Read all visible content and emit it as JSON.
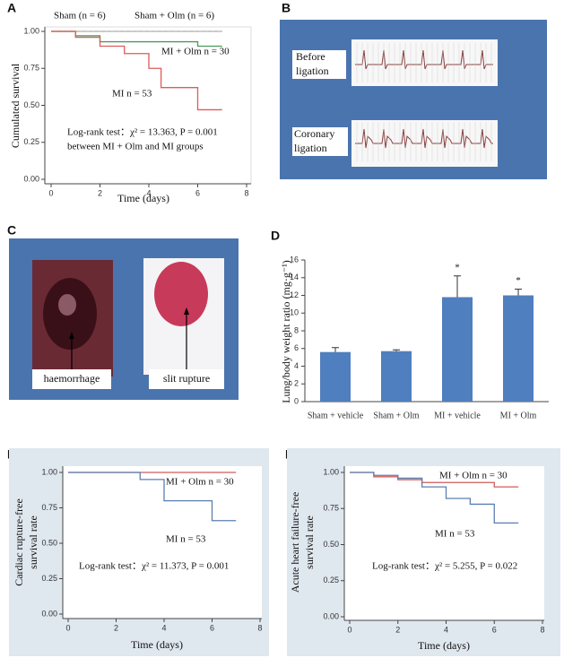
{
  "chart_data": [
    {
      "type": "line",
      "step": true,
      "panel": "A",
      "xlabel": "Time (days)",
      "ylabel": "Cumulated survival",
      "xlim": [
        0,
        8
      ],
      "ylim": [
        0,
        1
      ],
      "xticks": [
        0,
        2,
        4,
        6,
        8
      ],
      "yticks": [
        {
          "value": 0,
          "label": "0.00"
        },
        {
          "value": 0.25,
          "label": "0.25"
        },
        {
          "value": 0.5,
          "label": "0.50"
        },
        {
          "value": 0.75,
          "label": "0.75"
        },
        {
          "value": 1,
          "label": "1.00"
        }
      ],
      "series": [
        {
          "name": "Sham (n = 6)",
          "color": "#c8c050",
          "dashed": true,
          "x": [
            0,
            7
          ],
          "values": [
            1,
            1
          ]
        },
        {
          "name": "Sham + Olm (n = 6)",
          "color": "#b5b5b5",
          "x": [
            0,
            7
          ],
          "values": [
            1,
            1
          ]
        },
        {
          "name": "MI + Olm n = 30",
          "color": "#4a9a5a",
          "x": [
            0,
            1,
            2,
            6,
            7
          ],
          "values": [
            1,
            0.97,
            0.93,
            0.9,
            0.9
          ]
        },
        {
          "name": "MI  n = 53",
          "color": "#e05a5a",
          "x": [
            0,
            1,
            2,
            3,
            4,
            4.5,
            6,
            7
          ],
          "values": [
            1,
            0.96,
            0.9,
            0.85,
            0.75,
            0.62,
            0.47,
            0.47
          ]
        }
      ],
      "annotations": [
        "Log-rank test：χ² = 13.363, P = 0.001",
        "between MI + Olm and MI groups"
      ]
    },
    {
      "type": "bar",
      "panel": "D",
      "ylabel": "Lung/body weight ratio (mg·g⁻¹)",
      "categories": [
        "Sham + vehicle",
        "Sham + Olm",
        "MI + vehicle",
        "MI + Olm"
      ],
      "values": [
        5.6,
        5.7,
        11.8,
        12.0
      ],
      "errors": [
        0.5,
        0.15,
        2.4,
        0.7
      ],
      "significance": [
        null,
        null,
        "*",
        "*"
      ],
      "color": "#4f7fbf",
      "ylim": [
        0,
        16
      ],
      "yticks": [
        0,
        2,
        4,
        6,
        8,
        10,
        12,
        14,
        16
      ]
    },
    {
      "type": "line",
      "step": true,
      "panel": "E",
      "xlabel": "Time (days)",
      "ylabel": [
        "Cardiac rupture-free",
        "survival rate"
      ],
      "xlim": [
        0,
        8
      ],
      "ylim": [
        0,
        1
      ],
      "xticks": [
        0,
        2,
        4,
        6,
        8
      ],
      "yticks": [
        {
          "value": 0,
          "label": "0.00"
        },
        {
          "value": 0.25,
          "label": "0.25"
        },
        {
          "value": 0.5,
          "label": "0.50"
        },
        {
          "value": 0.75,
          "label": "0.75"
        },
        {
          "value": 1,
          "label": "1.00"
        }
      ],
      "series": [
        {
          "name": "MI + Olm n = 30",
          "color": "#d05a5a",
          "x": [
            0,
            7
          ],
          "values": [
            1,
            1
          ]
        },
        {
          "name": "MI  n = 53",
          "color": "#5a7fb0",
          "x": [
            0,
            3,
            4,
            6,
            7
          ],
          "values": [
            1,
            0.95,
            0.8,
            0.66,
            0.66
          ]
        }
      ],
      "annotations": [
        "Log-rank test：χ² = 11.373, P = 0.001"
      ]
    },
    {
      "type": "line",
      "step": true,
      "panel": "F",
      "xlabel": "Time (days)",
      "ylabel": [
        "Acute heart failure-free",
        "survival rate"
      ],
      "xlim": [
        0,
        8
      ],
      "ylim": [
        0,
        1
      ],
      "xticks": [
        0,
        2,
        4,
        6,
        8
      ],
      "yticks": [
        {
          "value": 0,
          "label": "0.00"
        },
        {
          "value": 0.25,
          "label": "0.25"
        },
        {
          "value": 0.5,
          "label": "0.50"
        },
        {
          "value": 0.75,
          "label": "0.75"
        },
        {
          "value": 1,
          "label": "1.00"
        }
      ],
      "series": [
        {
          "name": "MI + Olm n = 30",
          "color": "#d05a5a",
          "x": [
            0,
            1,
            2,
            3,
            6,
            7
          ],
          "values": [
            1,
            0.97,
            0.95,
            0.93,
            0.9,
            0.9
          ]
        },
        {
          "name": "MI  n = 53",
          "color": "#5a7fb0",
          "x": [
            0,
            1,
            2,
            3,
            4,
            5,
            6,
            7
          ],
          "values": [
            1,
            0.98,
            0.96,
            0.9,
            0.82,
            0.78,
            0.65,
            0.65
          ]
        }
      ],
      "annotations": [
        "Log-rank test：χ² = 5.255, P = 0.022"
      ]
    }
  ],
  "panel_b": {
    "label": "B",
    "rows": [
      "Before",
      "ligation",
      "Coronary",
      "ligation"
    ]
  },
  "panel_c": {
    "label": "C",
    "labels": [
      "haemorrhage",
      "slit rupture"
    ]
  }
}
